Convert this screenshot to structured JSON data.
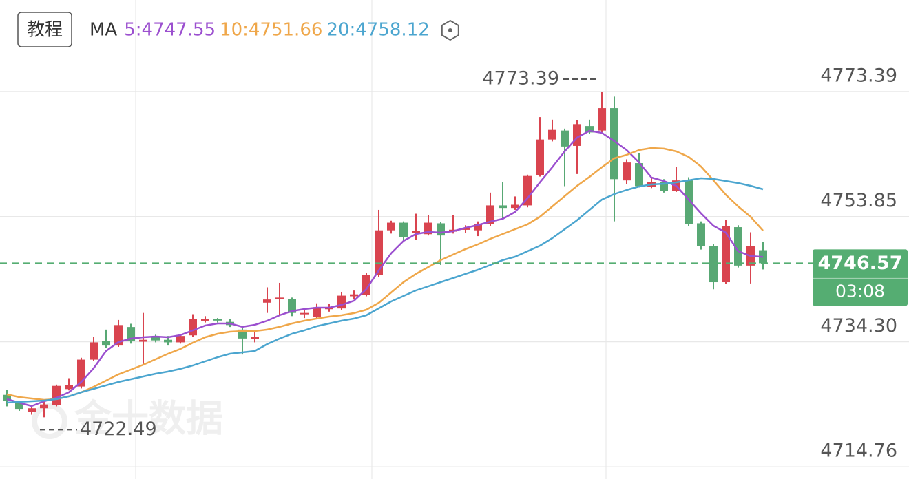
{
  "header": {
    "button": "教程"
  },
  "chart_data": {
    "type": "candlestick",
    "legend_title": "MA",
    "open": [
      4726.0,
      4724.7,
      4723.3,
      4723.9,
      4724.4,
      4726.9,
      4727.3,
      4731.5,
      4734.4,
      4733.7,
      4736.6,
      4734.3,
      4735.0,
      4734.6,
      4734.2,
      4735.3,
      4737.6,
      4737.9,
      4737.4,
      4736.2,
      4734.7,
      4740.4,
      4741.0,
      4741.0,
      4738.6,
      4738.2,
      4739.4,
      4739.5,
      4741.4,
      4741.6,
      4744.7,
      4751.7,
      4752.9,
      4751.3,
      4751.1,
      4752.8,
      4751.5,
      4751.8,
      4751.7,
      4752.7,
      4755.6,
      4755.2,
      4755.6,
      4760.3,
      4765.9,
      4767.3,
      4764.9,
      4768.0,
      4767.3,
      4770.8,
      4759.5,
      4762.2,
      4758.5,
      4759.3,
      4757.9,
      4759.5,
      4752.8,
      4749.3,
      4743.6,
      4752.2,
      4746.2,
      4748.6
    ],
    "high": [
      4726.8,
      4725.1,
      4724.3,
      4725.1,
      4727.6,
      4728.6,
      4731.8,
      4735.0,
      4736.2,
      4737.7,
      4737.1,
      4738.8,
      4735.4,
      4735.2,
      4735.5,
      4738.6,
      4738.3,
      4738.0,
      4737.9,
      4736.6,
      4735.8,
      4742.8,
      4743.5,
      4741.2,
      4739.5,
      4740.3,
      4740.2,
      4742.1,
      4742.3,
      4745.0,
      4754.9,
      4753.2,
      4753.1,
      4754.3,
      4754.1,
      4753.0,
      4754.1,
      4752.5,
      4753.1,
      4757.6,
      4759.2,
      4757.0,
      4760.4,
      4769.4,
      4769.0,
      4767.6,
      4768.9,
      4769.0,
      4773.39,
      4772.6,
      4762.8,
      4763.8,
      4759.8,
      4759.7,
      4761.6,
      4760.0,
      4753.1,
      4749.6,
      4753.3,
      4752.5,
      4751.4,
      4749.9
    ],
    "low": [
      4724.2,
      4723.5,
      4722.9,
      4722.49,
      4724.2,
      4726.7,
      4727.0,
      4731.3,
      4733.3,
      4733.5,
      4734.0,
      4730.8,
      4734.2,
      4733.7,
      4734.0,
      4735.0,
      4737.3,
      4737.3,
      4736.6,
      4732.3,
      4734.2,
      4738.8,
      4738.3,
      4738.3,
      4738.0,
      4737.9,
      4739.0,
      4739.2,
      4740.9,
      4741.4,
      4744.4,
      4751.2,
      4749.9,
      4750.2,
      4750.9,
      4746.3,
      4751.2,
      4751.3,
      4750.8,
      4752.4,
      4753.3,
      4754.9,
      4755.3,
      4760.1,
      4765.6,
      4758.6,
      4760.5,
      4766.8,
      4767.0,
      4753.1,
      4758.9,
      4758.4,
      4758.3,
      4757.6,
      4757.7,
      4752.4,
      4748.7,
      4742.5,
      4743.3,
      4745.9,
      4743.4,
      4745.6
    ],
    "close": [
      4725.0,
      4723.7,
      4723.9,
      4724.5,
      4727.4,
      4727.5,
      4731.5,
      4734.2,
      4733.7,
      4736.9,
      4734.4,
      4734.6,
      4734.5,
      4734.2,
      4735.2,
      4737.8,
      4737.8,
      4737.6,
      4736.9,
      4734.8,
      4735.0,
      4740.9,
      4741.2,
      4738.8,
      4738.8,
      4739.7,
      4739.6,
      4741.5,
      4741.7,
      4744.7,
      4751.7,
      4752.9,
      4750.7,
      4751.6,
      4752.9,
      4750.9,
      4751.8,
      4752.0,
      4752.7,
      4755.6,
      4755.2,
      4755.7,
      4760.2,
      4765.9,
      4767.4,
      4764.8,
      4768.3,
      4767.0,
      4770.8,
      4759.7,
      4762.3,
      4758.6,
      4759.2,
      4757.9,
      4759.5,
      4752.7,
      4749.3,
      4743.6,
      4752.4,
      4746.2,
      4749.2,
      4746.57
    ],
    "up_color": "#d9444f",
    "down_color": "#58a874",
    "series": [
      {
        "label": "5:4747.55",
        "color": "#9b4fcf",
        "values": [
          4725.33,
          4724.79,
          4724.25,
          4725.0,
          4725.54,
          4726.4,
          4728.01,
          4730.16,
          4732.85,
          4734.25,
          4734.79,
          4735.0,
          4735.11,
          4735.0,
          4735.33,
          4736.08,
          4736.83,
          4737.15,
          4737.15,
          4736.62,
          4736.94,
          4737.58,
          4738.44,
          4739.09,
          4739.41,
          4739.63,
          4739.63,
          4740.06,
          4740.7,
          4742.53,
          4745.43,
          4748.12,
          4750.06,
          4751.13,
          4751.45,
          4751.35,
          4751.56,
          4752.1,
          4752.53,
          4753.07,
          4753.5,
          4754.57,
          4756.72,
          4759.2,
          4761.56,
          4764.04,
          4766.19,
          4767.26,
          4766.94,
          4765.65,
          4764.25,
          4762.31,
          4759.95,
          4759.41,
          4758.66,
          4756.51,
          4754.36,
          4752.42,
          4751.35,
          4748.44,
          4747.69,
          4747.55
        ]
      },
      {
        "label": "10:4751.66",
        "color": "#efa74a",
        "values": [
          4726.08,
          4725.65,
          4725.43,
          4725.22,
          4725.33,
          4725.76,
          4726.4,
          4727.26,
          4728.23,
          4729.2,
          4729.95,
          4730.7,
          4731.56,
          4732.42,
          4733.17,
          4734.14,
          4735.0,
          4735.54,
          4735.86,
          4735.97,
          4735.97,
          4736.19,
          4736.62,
          4737.15,
          4737.58,
          4737.91,
          4738.23,
          4738.44,
          4738.77,
          4739.3,
          4740.38,
          4741.99,
          4743.61,
          4744.9,
          4745.97,
          4747.05,
          4747.91,
          4748.77,
          4749.52,
          4750.38,
          4751.13,
          4751.88,
          4752.64,
          4753.82,
          4755.43,
          4757.05,
          4758.66,
          4760.06,
          4761.56,
          4762.96,
          4763.5,
          4764.25,
          4764.57,
          4764.47,
          4764.04,
          4763.17,
          4761.67,
          4759.52,
          4757.26,
          4755.43,
          4753.82,
          4751.66
        ]
      },
      {
        "label": "20:4758.12",
        "color": "#4ba5cf",
        "values": [
          4724.79,
          4724.9,
          4725.0,
          4725.11,
          4725.33,
          4725.76,
          4726.4,
          4726.94,
          4727.48,
          4728.01,
          4728.44,
          4728.87,
          4729.3,
          4729.63,
          4730.06,
          4730.59,
          4731.24,
          4731.88,
          4732.42,
          4732.64,
          4732.85,
          4733.93,
          4734.79,
          4735.54,
          4736.08,
          4736.72,
          4737.15,
          4737.58,
          4737.91,
          4738.44,
          4739.52,
          4740.59,
          4741.45,
          4742.31,
          4742.96,
          4743.61,
          4744.25,
          4744.9,
          4745.54,
          4746.29,
          4747.05,
          4747.58,
          4748.44,
          4749.3,
          4750.49,
          4751.88,
          4753.28,
          4754.9,
          4756.51,
          4757.37,
          4758.01,
          4758.55,
          4758.87,
          4758.98,
          4759.2,
          4759.52,
          4759.84,
          4759.73,
          4759.41,
          4759.09,
          4758.66,
          4758.12
        ]
      }
    ],
    "ylim": [
      4712.85,
      4787.69
    ],
    "yticks": [
      4773.39,
      4753.85,
      {
        "value": 4734.3,
        "label": "4734.30"
      },
      4714.76
    ],
    "grid": true,
    "last_price": 4746.57,
    "last_price_color": "#55ad72",
    "countdown": "03:08",
    "watermark": "金十数据"
  }
}
